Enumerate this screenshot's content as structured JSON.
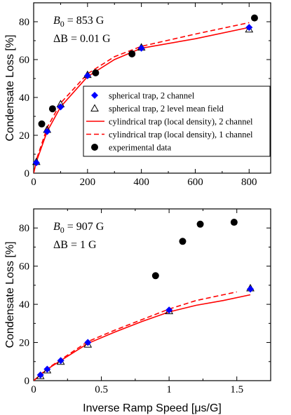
{
  "chart_data": [
    {
      "type": "scatter",
      "xlabel": "",
      "ylabel": "Condensate Loss [%]",
      "xlim": [
        0,
        880
      ],
      "ylim": [
        0,
        90
      ],
      "xticks": [
        0,
        200,
        400,
        600,
        800
      ],
      "yticks": [
        0,
        20,
        40,
        60,
        80
      ],
      "annotation": {
        "b0_symbol": "B",
        "b0_sub": "0",
        "b0_value": " = 853 G",
        "db_text": "ΔB = 0.01 G"
      },
      "legend_position": "center-right",
      "colors": {
        "spherical_2ch": "#0000ff",
        "cyl": "#ff0000",
        "exp": "#000000"
      },
      "series": [
        {
          "name": "spherical trap, 2 channel",
          "kind": "diamond",
          "color": "#0000ff",
          "points": [
            [
              10,
              5.5
            ],
            [
              50,
              22
            ],
            [
              100,
              35
            ],
            [
              200,
              51.5
            ],
            [
              400,
              66
            ],
            [
              800,
              77
            ]
          ]
        },
        {
          "name": "spherical trap, 2 level mean field",
          "kind": "triangle",
          "color": "#000000",
          "points": [
            [
              10,
              6
            ],
            [
              50,
              23
            ],
            [
              100,
              36.5
            ],
            [
              200,
              52
            ],
            [
              400,
              66.5
            ],
            [
              800,
              76
            ]
          ]
        },
        {
          "name": "cylindrical trap (local density), 2 channel",
          "kind": "solid",
          "color": "#ff0000",
          "points": [
            [
              0,
              0
            ],
            [
              10,
              6
            ],
            [
              50,
              22
            ],
            [
              100,
              35
            ],
            [
              200,
              51
            ],
            [
              300,
              60
            ],
            [
              400,
              66
            ],
            [
              600,
              71
            ],
            [
              800,
              77
            ]
          ]
        },
        {
          "name": "cylindrical trap (local density), 1 channel",
          "kind": "dashed",
          "color": "#ff0000",
          "points": [
            [
              0,
              0
            ],
            [
              10,
              7
            ],
            [
              50,
              24
            ],
            [
              100,
              37
            ],
            [
              200,
              52.5
            ],
            [
              300,
              61.5
            ],
            [
              400,
              67
            ],
            [
              600,
              73.5
            ],
            [
              800,
              79.5
            ]
          ]
        },
        {
          "name": "experimental data",
          "kind": "circle",
          "color": "#000000",
          "points": [
            [
              30,
              26
            ],
            [
              70,
              34
            ],
            [
              230,
              53
            ],
            [
              365,
              63
            ],
            [
              820,
              82
            ]
          ]
        }
      ]
    },
    {
      "type": "scatter",
      "xlabel": "Inverse Ramp Speed [μs/G]",
      "ylabel": "Condensate Loss [%]",
      "xlim": [
        0,
        1.75
      ],
      "ylim": [
        0,
        90
      ],
      "xticks": [
        0,
        0.5,
        1,
        1.5
      ],
      "xticklabels": [
        "0",
        "0.5",
        "1",
        "1.5"
      ],
      "yticks": [
        0,
        20,
        40,
        60,
        80
      ],
      "annotation": {
        "b0_symbol": "B",
        "b0_sub": "0",
        "b0_value": " = 907 G",
        "db_text": "ΔB = 1 G"
      },
      "series": [
        {
          "name": "spherical trap, 2 channel",
          "kind": "diamond",
          "color": "#0000ff",
          "points": [
            [
              0.05,
              3
            ],
            [
              0.1,
              6
            ],
            [
              0.2,
              10.5
            ],
            [
              0.4,
              20
            ],
            [
              1.0,
              37
            ],
            [
              1.6,
              48
            ]
          ]
        },
        {
          "name": "spherical trap, 2 level mean field",
          "kind": "triangle",
          "color": "#000000",
          "points": [
            [
              0.05,
              2.5
            ],
            [
              0.1,
              5.5
            ],
            [
              0.2,
              10
            ],
            [
              0.4,
              19
            ],
            [
              1.0,
              36.5
            ],
            [
              1.6,
              48.5
            ]
          ]
        },
        {
          "name": "cylindrical trap (local density), 2 channel",
          "kind": "solid",
          "color": "#ff0000",
          "points": [
            [
              0,
              0
            ],
            [
              0.05,
              3
            ],
            [
              0.1,
              6
            ],
            [
              0.2,
              10.5
            ],
            [
              0.4,
              19.5
            ],
            [
              0.6,
              25.5
            ],
            [
              0.8,
              31
            ],
            [
              1.0,
              36
            ],
            [
              1.2,
              39.5
            ],
            [
              1.4,
              42
            ],
            [
              1.6,
              45
            ]
          ]
        },
        {
          "name": "cylindrical trap (local density), 1 channel",
          "kind": "dashed",
          "color": "#ff0000",
          "points": [
            [
              0,
              0
            ],
            [
              0.05,
              3.2
            ],
            [
              0.1,
              6.3
            ],
            [
              0.2,
              11
            ],
            [
              0.4,
              20.5
            ],
            [
              0.6,
              26.5
            ],
            [
              0.8,
              32
            ],
            [
              1.0,
              37.5
            ],
            [
              1.2,
              42
            ],
            [
              1.4,
              45
            ],
            [
              1.5,
              46.5
            ]
          ]
        },
        {
          "name": "experimental data",
          "kind": "circle",
          "color": "#000000",
          "points": [
            [
              0.9,
              55
            ],
            [
              1.1,
              73
            ],
            [
              1.23,
              82
            ],
            [
              1.48,
              83
            ]
          ]
        }
      ]
    }
  ]
}
